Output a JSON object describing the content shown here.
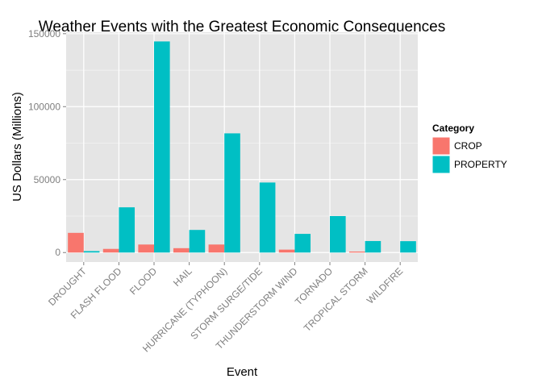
{
  "chart_data": {
    "type": "bar",
    "title": "Weather Events with the Greatest Economic Consequences",
    "xlabel": "Event",
    "ylabel": "US Dollars (Millions)",
    "ylim": [
      -6500,
      151000
    ],
    "yticks": [
      0,
      50000,
      100000,
      150000
    ],
    "ytick_labels": [
      "0",
      "50000",
      "100000",
      "150000"
    ],
    "categories": [
      "DROUGHT",
      "FLASH FLOOD",
      "FLOOD",
      "HAIL",
      "HURRICANE (TYPHOON)",
      "STORM SURGE/TIDE",
      "THUNDERSTORM WIND",
      "TORNADO",
      "TROPICAL STORM",
      "WILDFIRE"
    ],
    "series": [
      {
        "name": "CROP",
        "color": "#F8766D",
        "values": [
          13500,
          2500,
          5500,
          3000,
          5500,
          0,
          2000,
          0,
          700,
          0
        ]
      },
      {
        "name": "PROPERTY",
        "color": "#00BFC4",
        "values": [
          1000,
          31000,
          144700,
          15500,
          81700,
          48000,
          12800,
          25000,
          7900,
          7800
        ]
      }
    ],
    "legend": {
      "title": "Category",
      "position": "right"
    },
    "grid": true,
    "panel_background": "#E5E5E5",
    "grid_color": "#FFFFFF"
  }
}
